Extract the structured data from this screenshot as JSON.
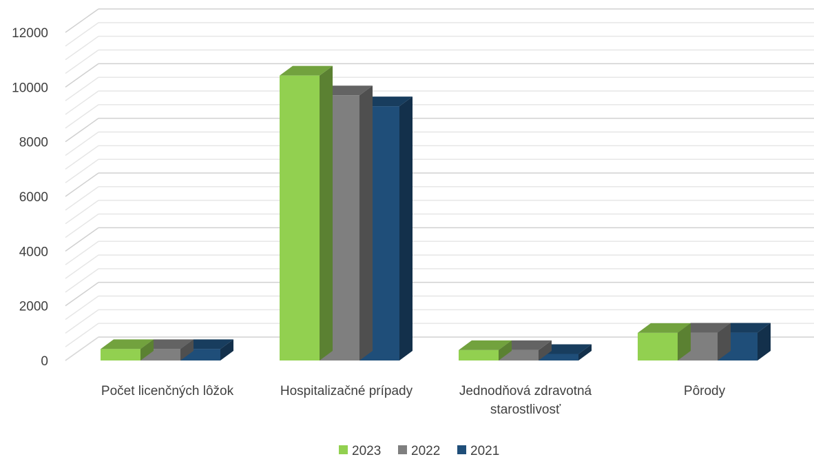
{
  "chart_data": {
    "type": "bar",
    "categories": [
      [
        "Počet licenčných lôžok"
      ],
      [
        "Hospitalizačné prípady"
      ],
      [
        "Jednodňová zdravotná",
        "starostlivosť"
      ],
      [
        "Pôrody"
      ]
    ],
    "series": [
      {
        "name": "2023",
        "color": "#92D050",
        "values": [
          420,
          10420,
          380,
          1010
        ]
      },
      {
        "name": "2022",
        "color": "#7F7F7F",
        "values": [
          420,
          9700,
          380,
          1020
        ]
      },
      {
        "name": "2021",
        "color": "#1F4E79",
        "values": [
          420,
          9300,
          240,
          1020
        ]
      }
    ],
    "y_ticks": [
      "0",
      "2000",
      "4000",
      "6000",
      "8000",
      "10000",
      "12000"
    ],
    "ylim": [
      0,
      12000
    ],
    "legend_position": "bottom",
    "style": "3d-clustered-column",
    "grid": true
  }
}
